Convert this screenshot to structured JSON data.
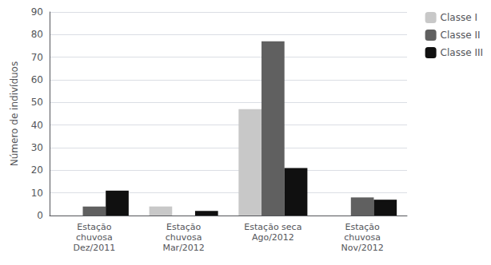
{
  "chart_data": {
    "type": "bar",
    "categories": [
      "Estação\nchuvosa\nDez/2011",
      "Estação\nchuvosa\nMar/2012",
      "Estação seca\nAgo/2012",
      "Estação\nchuvosa\nNov/2012"
    ],
    "series": [
      {
        "name": "Classe I",
        "color": "#c8c8c8",
        "values": [
          0,
          4,
          47,
          0
        ]
      },
      {
        "name": "Classe II",
        "color": "#606060",
        "values": [
          4,
          0,
          77,
          8
        ]
      },
      {
        "name": "Classe III",
        "color": "#101010",
        "values": [
          11,
          2,
          21,
          7
        ]
      }
    ],
    "ylabel": "Número de indivíduos",
    "ylim": [
      0,
      90
    ],
    "yticks": [
      0,
      10,
      20,
      30,
      40,
      50,
      60,
      70,
      80,
      90
    ],
    "grid": true,
    "legend": "upper right"
  }
}
